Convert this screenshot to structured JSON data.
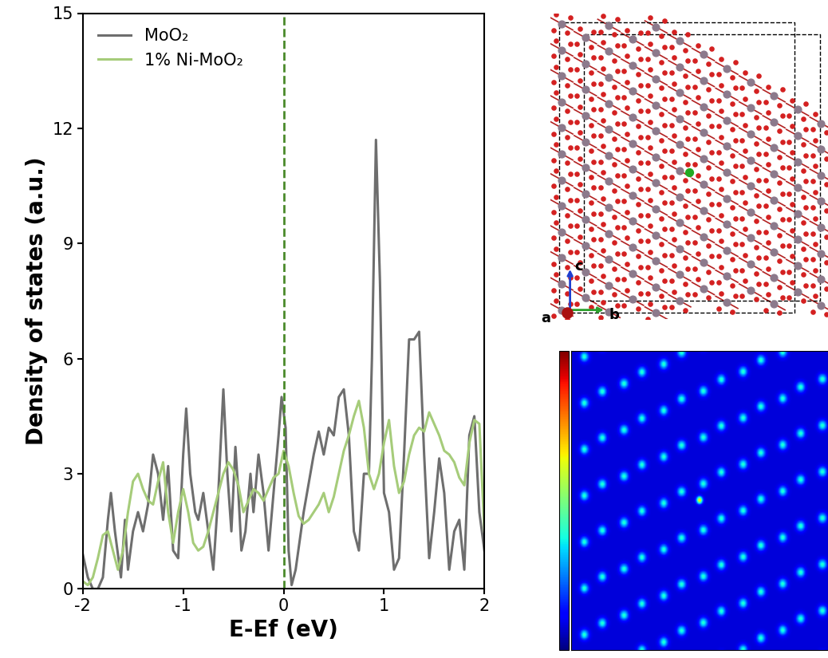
{
  "chart_data": {
    "type": "line",
    "xlabel": "E-Ef (eV)",
    "ylabel": "Density of states (a.u.)",
    "xlim": [
      -2,
      2
    ],
    "xticks": [
      -2,
      -1,
      0,
      1,
      2
    ],
    "ylim": [
      0,
      15
    ],
    "yticks": [
      0,
      3,
      6,
      9,
      12,
      15
    ],
    "legend": "upper left",
    "vlines": [
      0
    ],
    "series": [
      {
        "name": "MoO₂",
        "color": "#6e6e6e",
        "x": [
          -2.0,
          -1.95,
          -1.9,
          -1.85,
          -1.8,
          -1.75,
          -1.72,
          -1.68,
          -1.62,
          -1.58,
          -1.55,
          -1.5,
          -1.45,
          -1.4,
          -1.35,
          -1.3,
          -1.25,
          -1.2,
          -1.15,
          -1.1,
          -1.05,
          -1.0,
          -0.97,
          -0.93,
          -0.88,
          -0.85,
          -0.8,
          -0.75,
          -0.7,
          -0.65,
          -0.6,
          -0.56,
          -0.52,
          -0.48,
          -0.45,
          -0.42,
          -0.38,
          -0.33,
          -0.3,
          -0.25,
          -0.2,
          -0.15,
          -0.1,
          -0.05,
          -0.02,
          0.02,
          0.05,
          0.08,
          0.12,
          0.2,
          0.3,
          0.35,
          0.4,
          0.45,
          0.5,
          0.55,
          0.6,
          0.65,
          0.7,
          0.75,
          0.8,
          0.85,
          0.88,
          0.92,
          0.96,
          1.0,
          1.05,
          1.1,
          1.15,
          1.2,
          1.25,
          1.3,
          1.35,
          1.4,
          1.45,
          1.5,
          1.55,
          1.6,
          1.65,
          1.7,
          1.75,
          1.8,
          1.85,
          1.9,
          1.95,
          2.0
        ],
        "values": [
          0.9,
          0.3,
          0.0,
          0.0,
          0.3,
          1.8,
          2.5,
          1.5,
          0.3,
          1.8,
          0.5,
          1.5,
          2.0,
          1.5,
          2.2,
          3.5,
          3.0,
          1.8,
          3.2,
          1.0,
          0.8,
          3.5,
          4.7,
          3.0,
          2.0,
          1.8,
          2.5,
          1.5,
          0.5,
          2.5,
          5.2,
          3.0,
          1.5,
          3.7,
          2.5,
          1.0,
          1.5,
          3.0,
          2.0,
          3.5,
          2.5,
          1.0,
          2.5,
          4.0,
          5.0,
          4.2,
          1.0,
          0.1,
          0.5,
          2.0,
          3.5,
          4.1,
          3.5,
          4.2,
          4.0,
          5.0,
          5.2,
          4.0,
          1.5,
          1.0,
          3.0,
          3.0,
          6.0,
          11.7,
          8.0,
          2.5,
          2.0,
          0.5,
          0.8,
          3.5,
          6.5,
          6.5,
          6.7,
          3.5,
          0.8,
          2.0,
          3.4,
          2.5,
          0.5,
          1.5,
          1.8,
          0.5,
          4.0,
          4.5,
          2.0,
          1.0
        ]
      },
      {
        "name": "1% Ni-MoO₂",
        "color": "#a6cc7a",
        "x": [
          -2.0,
          -1.95,
          -1.9,
          -1.85,
          -1.8,
          -1.75,
          -1.7,
          -1.65,
          -1.6,
          -1.55,
          -1.5,
          -1.45,
          -1.4,
          -1.35,
          -1.3,
          -1.25,
          -1.2,
          -1.15,
          -1.1,
          -1.05,
          -1.0,
          -0.95,
          -0.9,
          -0.85,
          -0.8,
          -0.75,
          -0.7,
          -0.65,
          -0.6,
          -0.55,
          -0.5,
          -0.45,
          -0.4,
          -0.35,
          -0.3,
          -0.25,
          -0.2,
          -0.15,
          -0.1,
          -0.05,
          0.0,
          0.05,
          0.1,
          0.15,
          0.2,
          0.25,
          0.3,
          0.35,
          0.4,
          0.45,
          0.5,
          0.55,
          0.6,
          0.65,
          0.7,
          0.75,
          0.8,
          0.85,
          0.9,
          0.95,
          1.0,
          1.05,
          1.1,
          1.15,
          1.2,
          1.25,
          1.3,
          1.35,
          1.4,
          1.45,
          1.5,
          1.55,
          1.6,
          1.65,
          1.7,
          1.75,
          1.8,
          1.85,
          1.9,
          1.95,
          2.0
        ],
        "values": [
          0.2,
          0.1,
          0.3,
          0.8,
          1.4,
          1.5,
          1.0,
          0.5,
          1.0,
          2.0,
          2.8,
          3.0,
          2.6,
          2.3,
          2.2,
          2.8,
          3.3,
          2.0,
          1.2,
          2.0,
          2.6,
          2.0,
          1.2,
          1.0,
          1.1,
          1.5,
          2.0,
          2.5,
          3.0,
          3.3,
          3.1,
          2.7,
          2.0,
          2.3,
          2.6,
          2.5,
          2.3,
          2.6,
          2.9,
          3.0,
          3.6,
          3.2,
          2.5,
          1.9,
          1.7,
          1.8,
          2.0,
          2.2,
          2.5,
          2.0,
          2.4,
          3.0,
          3.6,
          4.0,
          4.5,
          4.9,
          4.2,
          3.0,
          2.6,
          3.0,
          3.8,
          4.4,
          3.2,
          2.5,
          2.8,
          3.5,
          4.0,
          4.2,
          4.1,
          4.6,
          4.3,
          4.0,
          3.6,
          3.5,
          3.3,
          2.9,
          2.7,
          3.8,
          4.4,
          4.3,
          1.5
        ]
      }
    ]
  },
  "structure": {
    "axis_labels": [
      "c",
      "a",
      "b"
    ]
  }
}
